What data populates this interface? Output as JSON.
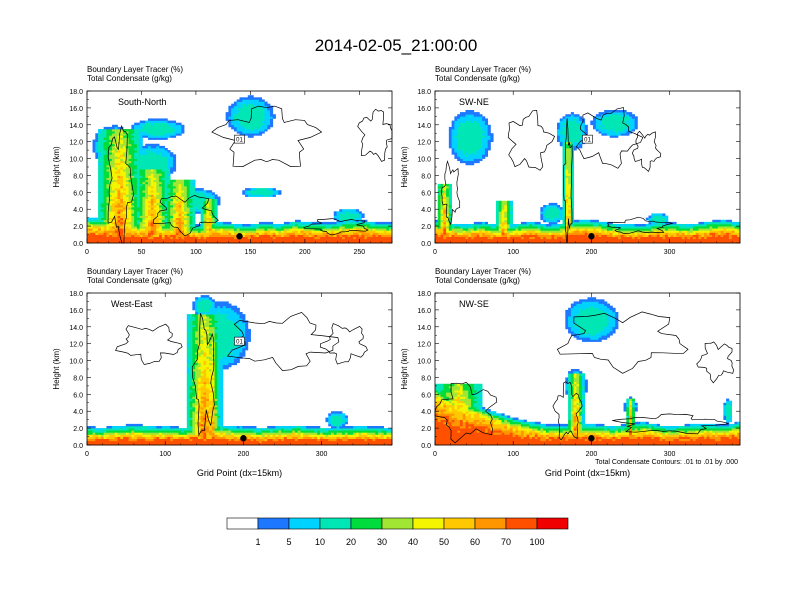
{
  "figure_title": "2014-02-05_21:00:00",
  "panel_header_line1": "Boundary Layer Tracer   (%)",
  "panel_header_line2": "Total Condensate   (g/kg)",
  "footnote": "Total Condensate Contours: .01 to .01 by .000",
  "colors": {
    "levels": [
      {
        "label": "",
        "color": "#ffffff"
      },
      {
        "label": "1",
        "color": "#1e78ff"
      },
      {
        "label": "5",
        "color": "#00d2ff"
      },
      {
        "label": "10",
        "color": "#00e6b4"
      },
      {
        "label": "20",
        "color": "#00dc3c"
      },
      {
        "label": "30",
        "color": "#a0e632"
      },
      {
        "label": "40",
        "color": "#f5f500"
      },
      {
        "label": "50",
        "color": "#ffc800"
      },
      {
        "label": "60",
        "color": "#ff9600"
      },
      {
        "label": "70",
        "color": "#ff5000"
      },
      {
        "label": "100",
        "color": "#f00000"
      }
    ]
  },
  "chart_data": [
    {
      "type": "heatmap",
      "panel_label": "South-North",
      "ylabel": "Height (km)",
      "xlabel": "",
      "ylim": [
        0,
        18
      ],
      "xlim": [
        0,
        280
      ],
      "yticks": [
        "0.0",
        "2.0",
        "4.0",
        "6.0",
        "8.0",
        "10.0",
        "12.0",
        "14.0",
        "16.0",
        "18.0"
      ],
      "xticks": [
        {
          "v": 0,
          "t": "0"
        },
        {
          "v": 50,
          "t": "50"
        },
        {
          "v": 100,
          "t": "100"
        },
        {
          "v": 150,
          "t": "150"
        },
        {
          "v": 200,
          "t": "200"
        },
        {
          "v": 250,
          "t": "250"
        }
      ],
      "marker_x": 140,
      "contour_label": "01",
      "features": [
        {
          "kind": "pbl",
          "depth": [
            2.1,
            2.0,
            1.8,
            1.6,
            1.4,
            1.5,
            1.3,
            1.2,
            1.6,
            1.4,
            1.2,
            1.5,
            1.3,
            1.7,
            1.5,
            1.4,
            1.6,
            1.8,
            1.5,
            1.4
          ]
        },
        {
          "kind": "plume",
          "xc": 30,
          "hw": 20,
          "top": 13.5
        },
        {
          "kind": "plume",
          "xc": 60,
          "hw": 16,
          "top": 8.8
        },
        {
          "kind": "plume",
          "xc": 85,
          "hw": 14,
          "top": 7.5
        },
        {
          "kind": "plume",
          "xc": 112,
          "hw": 7,
          "top": 5.2
        },
        {
          "kind": "cloud",
          "xc": 25,
          "yc": 11.5,
          "rx": 20,
          "ry": 2.4
        },
        {
          "kind": "cloud",
          "xc": 60,
          "yc": 9.5,
          "rx": 22,
          "ry": 2.2
        },
        {
          "kind": "cloud",
          "xc": 65,
          "yc": 13.5,
          "rx": 25,
          "ry": 1.2
        },
        {
          "kind": "cloud",
          "xc": 150,
          "yc": 15.0,
          "rx": 22,
          "ry": 2.4
        },
        {
          "kind": "cloud",
          "xc": 98,
          "yc": 5.0,
          "rx": 25,
          "ry": 1.5
        },
        {
          "kind": "cloud",
          "xc": 160,
          "yc": 6.0,
          "rx": 18,
          "ry": 0.6
        },
        {
          "kind": "cloud",
          "xc": 240,
          "yc": 3.2,
          "rx": 14,
          "ry": 0.9
        },
        {
          "kind": "contour",
          "xc": 165,
          "yc": 12.5,
          "rx": 40,
          "ry": 3.2
        },
        {
          "kind": "contour",
          "xc": 265,
          "yc": 12.8,
          "rx": 14,
          "ry": 2.6
        },
        {
          "kind": "contour",
          "xc": 30,
          "yc": 7.0,
          "rx": 10,
          "ry": 6.0
        },
        {
          "kind": "contour",
          "xc": 90,
          "yc": 3.5,
          "rx": 25,
          "ry": 2.0
        },
        {
          "kind": "contour",
          "xc": 230,
          "yc": 2.0,
          "rx": 25,
          "ry": 0.8
        }
      ]
    },
    {
      "type": "heatmap",
      "panel_label": "SW-NE",
      "ylabel": "Height (km)",
      "xlabel": "",
      "ylim": [
        0,
        18
      ],
      "xlim": [
        0,
        390
      ],
      "yticks": [
        "0.0",
        "2.0",
        "4.0",
        "6.0",
        "8.0",
        "10.0",
        "12.0",
        "14.0",
        "16.0",
        "18.0"
      ],
      "xticks": [
        {
          "v": 0,
          "t": "0"
        },
        {
          "v": 100,
          "t": "100"
        },
        {
          "v": 200,
          "t": "200"
        },
        {
          "v": 300,
          "t": "300"
        }
      ],
      "marker_x": 200,
      "contour_label": "01",
      "features": [
        {
          "kind": "pbl",
          "depth": [
            1.8,
            1.4,
            1.3,
            1.5,
            1.2,
            1.3,
            1.6,
            1.2,
            1.4,
            1.8,
            1.7,
            1.4,
            1.3,
            1.2,
            1.5,
            1.4,
            1.3,
            1.6,
            1.8,
            1.5
          ]
        },
        {
          "kind": "plume",
          "xc": 12,
          "hw": 10,
          "top": 7.0
        },
        {
          "kind": "plume",
          "xc": 88,
          "hw": 10,
          "top": 5.0
        },
        {
          "kind": "plume",
          "xc": 170,
          "hw": 6,
          "top": 12.0
        },
        {
          "kind": "cloud",
          "xc": 45,
          "yc": 12.5,
          "rx": 28,
          "ry": 3.2
        },
        {
          "kind": "cloud",
          "xc": 175,
          "yc": 13.2,
          "rx": 20,
          "ry": 2.2
        },
        {
          "kind": "cloud",
          "xc": 230,
          "yc": 14.2,
          "rx": 30,
          "ry": 1.6
        },
        {
          "kind": "cloud",
          "xc": 150,
          "yc": 3.5,
          "rx": 16,
          "ry": 1.2
        },
        {
          "kind": "cloud",
          "xc": 285,
          "yc": 2.8,
          "rx": 14,
          "ry": 0.8
        },
        {
          "kind": "contour",
          "xc": 120,
          "yc": 12.0,
          "rx": 25,
          "ry": 3.0
        },
        {
          "kind": "contour",
          "xc": 220,
          "yc": 12.5,
          "rx": 35,
          "ry": 3.0
        },
        {
          "kind": "contour",
          "xc": 270,
          "yc": 11.0,
          "rx": 15,
          "ry": 2.0
        },
        {
          "kind": "contour",
          "xc": 20,
          "yc": 6.0,
          "rx": 10,
          "ry": 3.0
        },
        {
          "kind": "contour",
          "xc": 170,
          "yc": 7.0,
          "rx": 5,
          "ry": 6.0
        },
        {
          "kind": "contour",
          "xc": 260,
          "yc": 2.0,
          "rx": 35,
          "ry": 0.8
        }
      ]
    },
    {
      "type": "heatmap",
      "panel_label": "West-East",
      "ylabel": "Height (km)",
      "xlabel": "Grid Point (dx=15km)",
      "ylim": [
        0,
        18
      ],
      "xlim": [
        0,
        390
      ],
      "yticks": [
        "0.0",
        "2.0",
        "4.0",
        "6.0",
        "8.0",
        "10.0",
        "12.0",
        "14.0",
        "16.0",
        "18.0"
      ],
      "xticks": [
        {
          "v": 0,
          "t": "0"
        },
        {
          "v": 100,
          "t": "100"
        },
        {
          "v": 200,
          "t": "200"
        },
        {
          "v": 300,
          "t": "300"
        }
      ],
      "marker_x": 200,
      "contour_label": "01",
      "features": [
        {
          "kind": "pbl",
          "depth": [
            1.2,
            1.1,
            1.3,
            1.4,
            1.2,
            1.3,
            1.1,
            1.4,
            1.5,
            1.3,
            1.2,
            1.1,
            1.3,
            1.4,
            1.2,
            1.1,
            1.2,
            1.3,
            1.2,
            1.1
          ]
        },
        {
          "kind": "plume",
          "xc": 150,
          "hw": 22,
          "top": 15.5
        },
        {
          "kind": "plume",
          "xc": 160,
          "hw": 8,
          "top": 14.0
        },
        {
          "kind": "cloud",
          "xc": 170,
          "yc": 13.0,
          "rx": 38,
          "ry": 4.0
        },
        {
          "kind": "cloud",
          "xc": 150,
          "yc": 16.5,
          "rx": 15,
          "ry": 1.2
        },
        {
          "kind": "cloud",
          "xc": 320,
          "yc": 3.0,
          "rx": 14,
          "ry": 1.0
        },
        {
          "kind": "cloud",
          "xc": 60,
          "yc": 1.8,
          "rx": 40,
          "ry": 0.6
        },
        {
          "kind": "contour",
          "xc": 250,
          "yc": 12.2,
          "rx": 60,
          "ry": 2.8
        },
        {
          "kind": "contour",
          "xc": 80,
          "yc": 12.0,
          "rx": 35,
          "ry": 2.0
        },
        {
          "kind": "contour",
          "xc": 330,
          "yc": 12.0,
          "rx": 25,
          "ry": 2.0
        },
        {
          "kind": "contour",
          "xc": 150,
          "yc": 8.0,
          "rx": 12,
          "ry": 6.0
        }
      ]
    },
    {
      "type": "heatmap",
      "panel_label": "NW-SE",
      "ylabel": "Height (km)",
      "xlabel": "Grid Point (dx=15km)",
      "ylim": [
        0,
        18
      ],
      "xlim": [
        0,
        390
      ],
      "yticks": [
        "0.0",
        "2.0",
        "4.0",
        "6.0",
        "8.0",
        "10.0",
        "12.0",
        "14.0",
        "16.0",
        "18.0"
      ],
      "xticks": [
        {
          "v": 0,
          "t": "0"
        },
        {
          "v": 100,
          "t": "100"
        },
        {
          "v": 200,
          "t": "200"
        },
        {
          "v": 300,
          "t": "300"
        }
      ],
      "marker_x": 200,
      "contour_label": "",
      "features": [
        {
          "kind": "pbl",
          "depth": [
            6.0,
            5.0,
            4.2,
            3.5,
            2.8,
            2.2,
            1.8,
            1.5,
            1.4,
            1.6,
            1.5,
            1.3,
            1.5,
            1.8,
            1.4,
            1.3,
            1.5,
            1.6,
            1.4,
            1.8
          ]
        },
        {
          "kind": "plume",
          "xc": 30,
          "hw": 30,
          "top": 7.2
        },
        {
          "kind": "plume",
          "xc": 180,
          "hw": 10,
          "top": 8.5
        },
        {
          "kind": "plume",
          "xc": 250,
          "hw": 5,
          "top": 5.5
        },
        {
          "kind": "cloud",
          "xc": 200,
          "yc": 14.8,
          "rx": 35,
          "ry": 2.6
        },
        {
          "kind": "cloud",
          "xc": 180,
          "yc": 7.0,
          "rx": 14,
          "ry": 2.0
        },
        {
          "kind": "cloud",
          "xc": 250,
          "yc": 4.5,
          "rx": 8,
          "ry": 1.2
        },
        {
          "kind": "cloud",
          "xc": 375,
          "yc": 4.0,
          "rx": 6,
          "ry": 1.5
        },
        {
          "kind": "contour",
          "xc": 240,
          "yc": 12.5,
          "rx": 70,
          "ry": 3.0
        },
        {
          "kind": "contour",
          "xc": 360,
          "yc": 10.0,
          "rx": 20,
          "ry": 2.0
        },
        {
          "kind": "contour",
          "xc": 40,
          "yc": 4.0,
          "rx": 35,
          "ry": 3.0
        },
        {
          "kind": "contour",
          "xc": 170,
          "yc": 4.0,
          "rx": 15,
          "ry": 3.0
        },
        {
          "kind": "contour",
          "xc": 300,
          "yc": 2.5,
          "rx": 60,
          "ry": 1.0
        }
      ]
    }
  ]
}
